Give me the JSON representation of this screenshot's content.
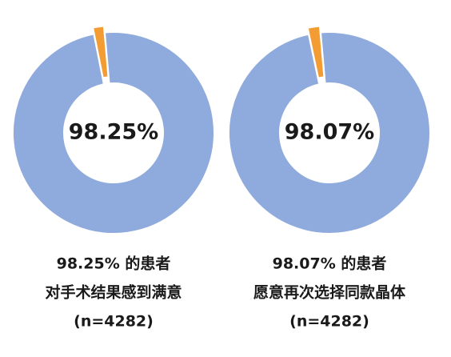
{
  "chart_data": [
    {
      "type": "pie",
      "values": [
        98.25,
        1.75
      ],
      "colors": [
        "#8faadc",
        "#f39c34"
      ],
      "center_label": "98.25%",
      "caption": [
        "98.25% 的患者",
        "对手术结果感到满意",
        "(n=4282)"
      ]
    },
    {
      "type": "pie",
      "values": [
        98.07,
        1.93
      ],
      "colors": [
        "#8faadc",
        "#f39c34"
      ],
      "center_label": "98.07%",
      "caption": [
        "98.07% 的患者",
        "愿意再次选择同款晶体",
        "(n=4282)"
      ]
    }
  ]
}
